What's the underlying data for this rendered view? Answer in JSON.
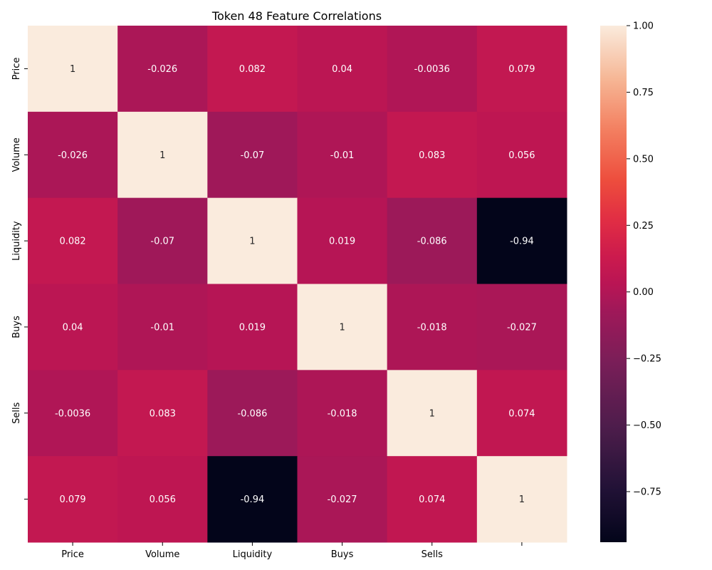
{
  "chart_data": {
    "type": "heatmap",
    "title": "Token 48 Feature Correlations",
    "x_labels": [
      "Price",
      "Volume",
      "Liquidity",
      "Buys",
      "Sells",
      ""
    ],
    "y_labels": [
      "Price",
      "Volume",
      "Liquidity",
      "Buys",
      "Sells",
      ""
    ],
    "values": [
      [
        1,
        -0.026,
        0.082,
        0.04,
        -0.0036,
        0.079
      ],
      [
        -0.026,
        1,
        -0.07,
        -0.01,
        0.083,
        0.056
      ],
      [
        0.082,
        -0.07,
        1,
        0.019,
        -0.086,
        -0.94
      ],
      [
        0.04,
        -0.01,
        0.019,
        1,
        -0.018,
        -0.027
      ],
      [
        -0.0036,
        0.083,
        -0.086,
        -0.018,
        1,
        0.074
      ],
      [
        0.079,
        0.056,
        -0.94,
        -0.027,
        0.074,
        1
      ]
    ],
    "cell_labels": [
      [
        "1",
        "-0.026",
        "0.082",
        "0.04",
        "-0.0036",
        "0.079"
      ],
      [
        "-0.026",
        "1",
        "-0.07",
        "-0.01",
        "0.083",
        "0.056"
      ],
      [
        "0.082",
        "-0.07",
        "1",
        "0.019",
        "-0.086",
        "-0.94"
      ],
      [
        "0.04",
        "-0.01",
        "0.019",
        "1",
        "-0.018",
        "-0.027"
      ],
      [
        "-0.0036",
        "0.083",
        "-0.086",
        "-0.018",
        "1",
        "0.074"
      ],
      [
        "0.079",
        "0.056",
        "-0.94",
        "-0.027",
        "0.074",
        "1"
      ]
    ],
    "colorbar": {
      "range": [
        -0.94,
        1.0
      ],
      "ticks": [
        1.0,
        0.75,
        0.5,
        0.25,
        0.0,
        -0.25,
        -0.5,
        -0.75
      ],
      "tick_labels": [
        "1.00",
        "0.75",
        "0.50",
        "0.25",
        "0.00",
        "−0.25",
        "−0.50",
        "−0.75"
      ],
      "colormap": "rocket"
    }
  }
}
